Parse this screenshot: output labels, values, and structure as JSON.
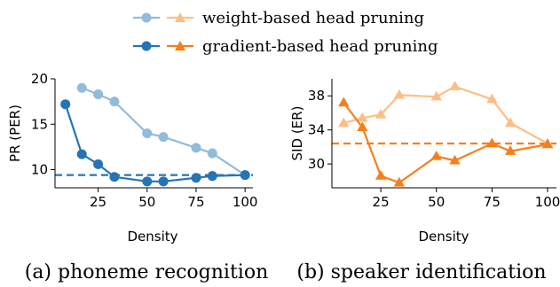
{
  "legend": {
    "weight_label": "weight-based head pruning",
    "gradient_label": "gradient-based head pruning"
  },
  "colors": {
    "pr_weight": "#91bcdc",
    "pr_gradient": "#2575b4",
    "sid_weight": "#fdbe85",
    "sid_gradient": "#f77f1a"
  },
  "chart_data": [
    {
      "type": "line",
      "caption": "(a) phoneme recognition",
      "xlabel": "Density",
      "ylabel": "PR (PER)",
      "xlim": [
        3,
        104
      ],
      "ylim": [
        8.0,
        20.0
      ],
      "xticks": [
        25,
        50,
        75,
        100
      ],
      "yticks": [
        10,
        15,
        20
      ],
      "marker": "circle",
      "series": [
        {
          "name": "weight-based head pruning",
          "color": "#91bcdc",
          "x": [
            16.7,
            25,
            33.3,
            50,
            58.3,
            75,
            83.3,
            100
          ],
          "y": [
            19.0,
            18.3,
            17.5,
            14.0,
            13.6,
            12.4,
            11.8,
            9.4
          ]
        },
        {
          "name": "gradient-based head pruning",
          "color": "#2575b4",
          "x": [
            8.3,
            16.7,
            25,
            33.3,
            50,
            58.3,
            75,
            83.3,
            100
          ],
          "y": [
            17.2,
            11.7,
            10.6,
            9.2,
            8.7,
            8.7,
            9.1,
            9.3,
            9.4
          ]
        }
      ],
      "baseline": 9.4
    },
    {
      "type": "line",
      "caption": "(b) speaker identification",
      "xlabel": "Density",
      "ylabel": "SID (ER)",
      "xlim": [
        3,
        104
      ],
      "ylim": [
        27.2,
        40.0
      ],
      "xticks": [
        25,
        50,
        75,
        100
      ],
      "yticks": [
        30,
        34,
        38
      ],
      "marker": "triangle",
      "series": [
        {
          "name": "weight-based head pruning",
          "color": "#fdbe85",
          "x": [
            8.3,
            16.7,
            25,
            33.3,
            50,
            58.3,
            75,
            83.3,
            100
          ],
          "y": [
            34.8,
            35.4,
            35.8,
            38.1,
            37.9,
            39.1,
            37.6,
            34.8,
            32.4
          ]
        },
        {
          "name": "gradient-based head pruning",
          "color": "#f77f1a",
          "x": [
            8.3,
            16.7,
            25,
            33.3,
            50,
            58.3,
            75,
            83.3,
            100
          ],
          "y": [
            37.2,
            34.3,
            28.6,
            27.8,
            30.9,
            30.4,
            32.4,
            31.5,
            32.3
          ]
        }
      ],
      "baseline": 32.4
    }
  ]
}
